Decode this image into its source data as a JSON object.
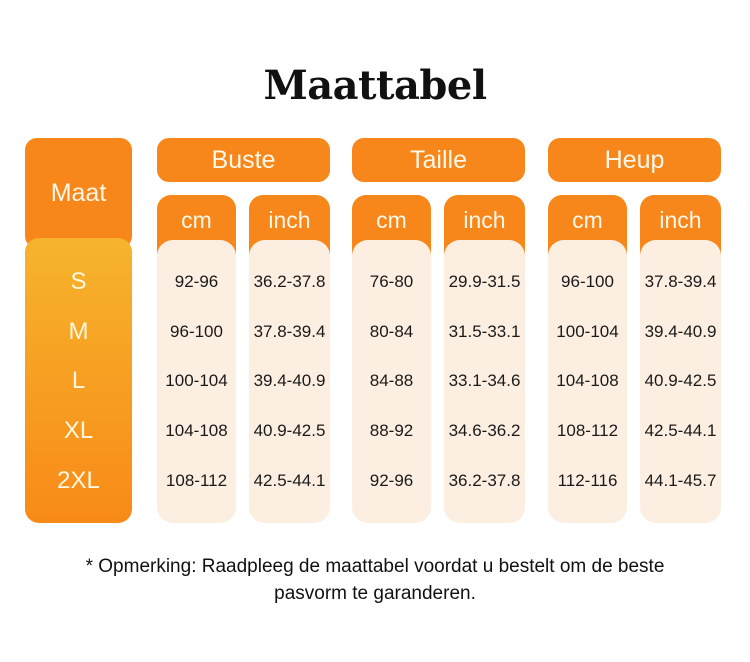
{
  "title": "Maattabel",
  "size_header": "Maat",
  "sizes": [
    "S",
    "M",
    "L",
    "XL",
    "2XL"
  ],
  "groups": [
    {
      "label": "Buste",
      "units": [
        "cm",
        "inch"
      ],
      "cm": [
        "92-96",
        "96-100",
        "100-104",
        "104-108",
        "108-112"
      ],
      "inch": [
        "36.2-37.8",
        "37.8-39.4",
        "39.4-40.9",
        "40.9-42.5",
        "42.5-44.1"
      ]
    },
    {
      "label": "Taille",
      "units": [
        "cm",
        "inch"
      ],
      "cm": [
        "76-80",
        "80-84",
        "84-88",
        "88-92",
        "92-96"
      ],
      "inch": [
        "29.9-31.5",
        "31.5-33.1",
        "33.1-34.6",
        "34.6-36.2",
        "36.2-37.8"
      ]
    },
    {
      "label": "Heup",
      "units": [
        "cm",
        "inch"
      ],
      "cm": [
        "96-100",
        "100-104",
        "104-108",
        "108-112",
        "112-116"
      ],
      "inch": [
        "37.8-39.4",
        "39.4-40.9",
        "40.9-42.5",
        "42.5-44.1",
        "44.1-45.7"
      ]
    }
  ],
  "note": [
    "* Opmerking: Raadpleeg de maattabel voordat u bestelt om de beste",
    "pasvorm te garanderen."
  ],
  "colors": {
    "header": "#f7871b",
    "size_gradient_top": "#f6b42c",
    "size_gradient_bottom": "#f88a18",
    "cell_bg": "#fcefe1"
  }
}
